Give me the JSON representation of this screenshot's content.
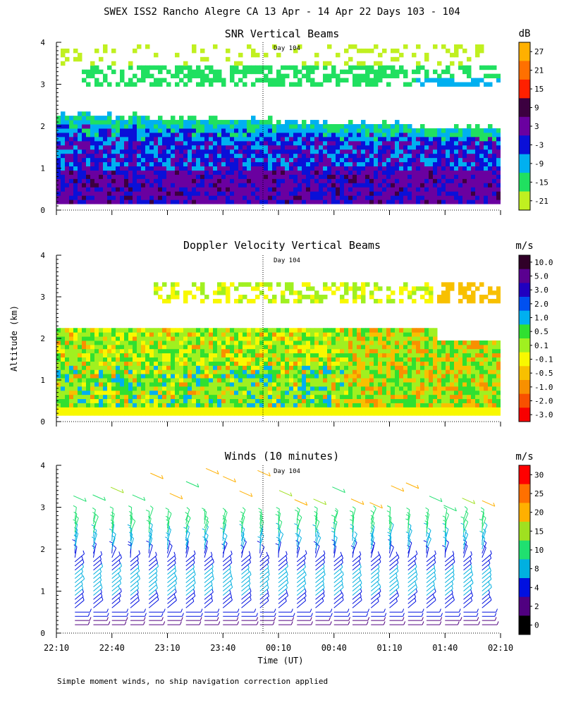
{
  "title": "SWEX ISS2 Rancho Alegre CA  13 Apr - 14 Apr 22 Days 103 - 104",
  "footnote": "Simple moment winds, no ship navigation correction applied",
  "shared": {
    "ylabel": "Altitude (km)",
    "xlabel": "Time (UT)",
    "x_tick_labels": [
      "22:10",
      "22:40",
      "23:10",
      "23:40",
      "00:10",
      "00:40",
      "01:10",
      "01:40",
      "02:10"
    ],
    "y_tick_labels": [
      "0",
      "1",
      "2",
      "3",
      "4"
    ],
    "day_marker": "Day 104"
  },
  "chart_data": [
    {
      "type": "heatmap",
      "title": "SNR Vertical Beams",
      "units": "dB",
      "xlim_minutes_after_2210": [
        0,
        240
      ],
      "ylim_km": [
        0,
        4
      ],
      "colorbar_labels": [
        "27",
        "21",
        "15",
        "9",
        "3",
        "-3",
        "-9",
        "-15",
        "-21"
      ],
      "colorbar_colors": [
        "#ffb000",
        "#ff7000",
        "#ff2000",
        "#3c0040",
        "#6a00a0",
        "#0a10d8",
        "#00b0f0",
        "#20e060",
        "#c0f020"
      ],
      "layers": [
        {
          "altitude_range_km": [
            0.1,
            0.9
          ],
          "typical_snr_db": 3
        },
        {
          "altitude_range_km": [
            0.9,
            2.1
          ],
          "typical_snr_db": -3
        },
        {
          "altitude_range_km": [
            2.1,
            2.4
          ],
          "typical_snr_db": -15
        },
        {
          "altitude_range_km": [
            2.9,
            3.9
          ],
          "typical_snr_db": -18
        }
      ]
    },
    {
      "type": "heatmap",
      "title": "Doppler Velocity Vertical Beams",
      "units": "m/s",
      "xlim_minutes_after_2210": [
        0,
        240
      ],
      "ylim_km": [
        0,
        4
      ],
      "colorbar_labels": [
        "10.0",
        "5.0",
        "3.0",
        "2.0",
        "1.0",
        "0.5",
        "0.1",
        "-0.1",
        "-0.5",
        "-1.0",
        "-2.0",
        "-3.0"
      ],
      "colorbar_colors": [
        "#300028",
        "#5a0090",
        "#2000c0",
        "#0050f0",
        "#00b0f0",
        "#30e030",
        "#a0f020",
        "#f8f800",
        "#f8c000",
        "#f89000",
        "#f85000",
        "#f80000"
      ],
      "layers": [
        {
          "altitude_range_km": [
            0.1,
            0.4
          ],
          "typical_velocity_ms": -0.1
        },
        {
          "altitude_range_km": [
            0.4,
            2.2
          ],
          "typical_velocity_ms": 0.1
        },
        {
          "altitude_range_km": [
            2.9,
            3.6
          ],
          "typical_velocity_ms": 0.1
        }
      ]
    },
    {
      "type": "scatter",
      "title": "Winds (10 minutes)",
      "units": "m/s",
      "xlim_minutes_after_2210": [
        0,
        240
      ],
      "ylim_km": [
        0,
        4
      ],
      "colorbar_labels": [
        "30",
        "25",
        "20",
        "15",
        "10",
        "8",
        "4",
        "2",
        "0"
      ],
      "colorbar_colors": [
        "#ff0000",
        "#ff7000",
        "#ffb000",
        "#a0e020",
        "#20e070",
        "#00b0e0",
        "#0010e0",
        "#500080",
        "#000000"
      ],
      "profile_times_minutes_after_2210": [
        10,
        20,
        30,
        40,
        50,
        60,
        70,
        80,
        90,
        100,
        110,
        120,
        130,
        140,
        150,
        160,
        170,
        180,
        190,
        200,
        210,
        220,
        230
      ]
    }
  ]
}
